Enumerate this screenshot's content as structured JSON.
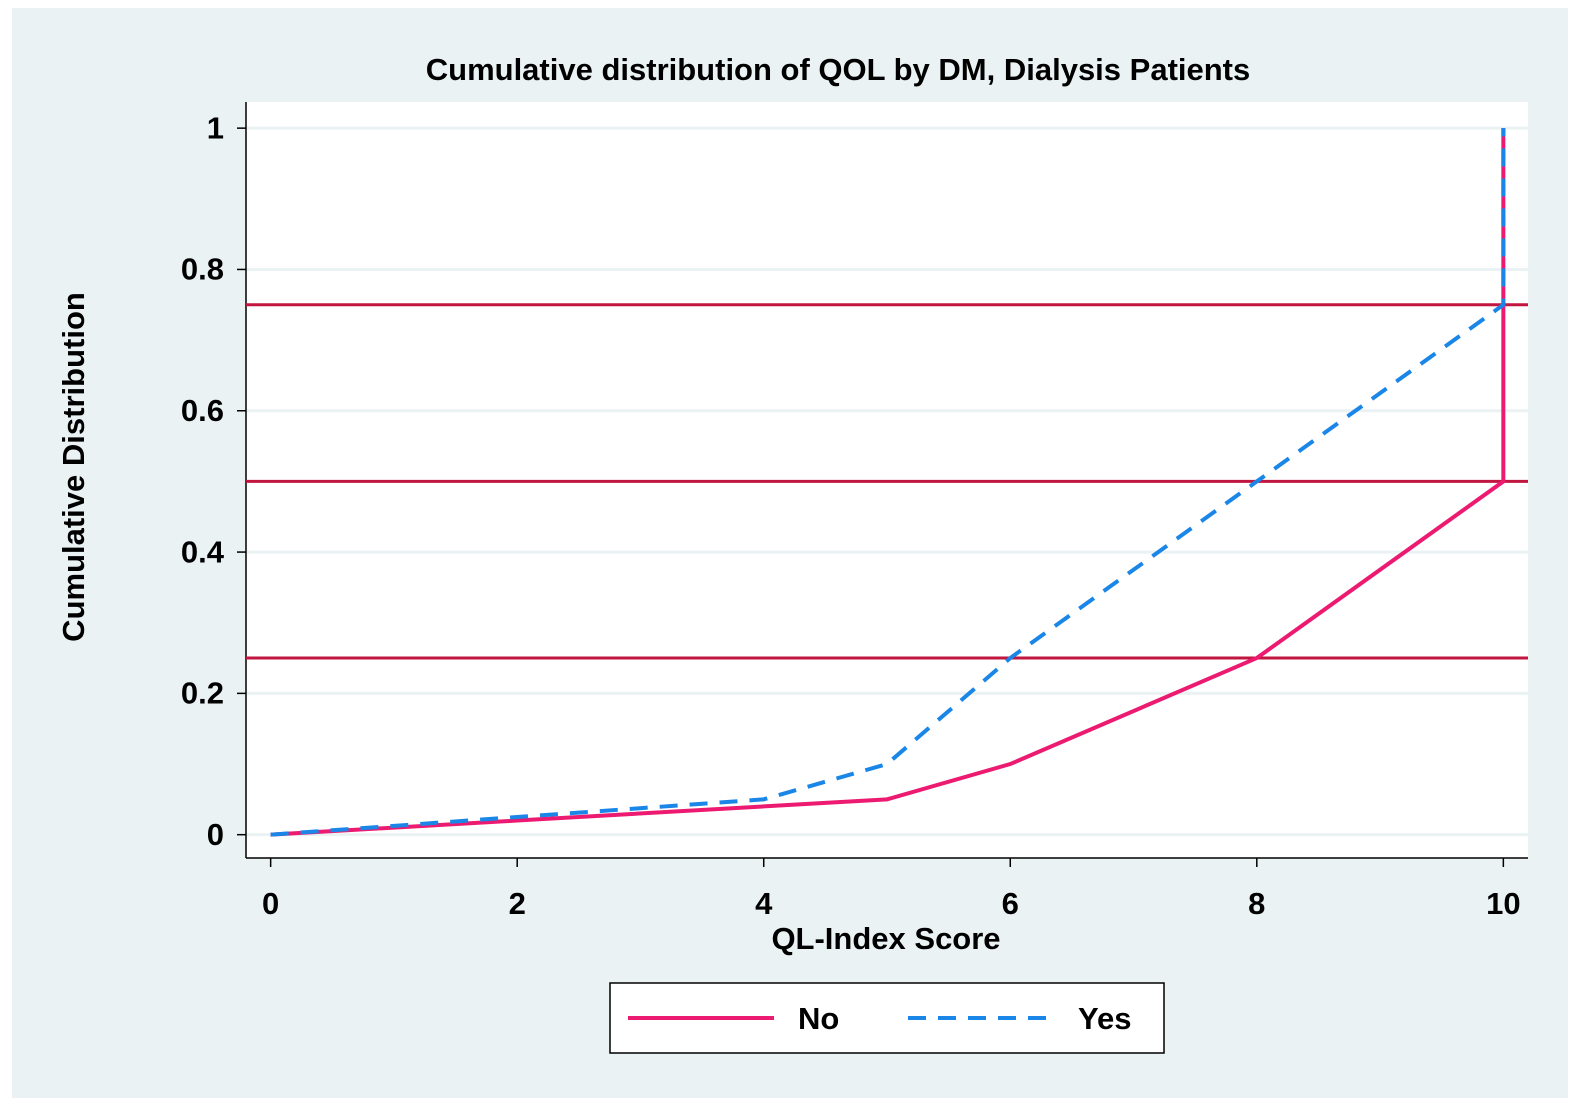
{
  "chart_data": {
    "type": "line",
    "title": "Cumulative distribution of QOL by DM, Dialysis Patients",
    "x_label": "QL-Index Score",
    "y_label": "Cumulative Distribution",
    "series": [
      {
        "name": "No",
        "color": "#ec1a70",
        "dash": "solid",
        "x": [
          0,
          2,
          4,
          5,
          6,
          8,
          10,
          10
        ],
        "values": [
          0,
          0.02,
          0.04,
          0.05,
          0.1,
          0.25,
          0.5,
          1
        ]
      },
      {
        "name": "Yes",
        "color": "#1a86e8",
        "dash": "dashed",
        "x": [
          0,
          2,
          4,
          5,
          6,
          8,
          10,
          10
        ],
        "values": [
          0,
          0.025,
          0.05,
          0.1,
          0.25,
          0.5,
          0.75,
          1
        ]
      }
    ],
    "reference_lines": [
      0.25,
      0.5,
      0.75
    ],
    "reference_color": "#c0163f",
    "xlim": [
      -0.2,
      10.2
    ],
    "ylim": [
      -0.033,
      1.037
    ],
    "xticks": [
      0,
      2,
      4,
      6,
      8,
      10
    ],
    "yticks": [
      0,
      0.2,
      0.4,
      0.6,
      0.8,
      1
    ],
    "grid": true,
    "legend": "bottom"
  }
}
